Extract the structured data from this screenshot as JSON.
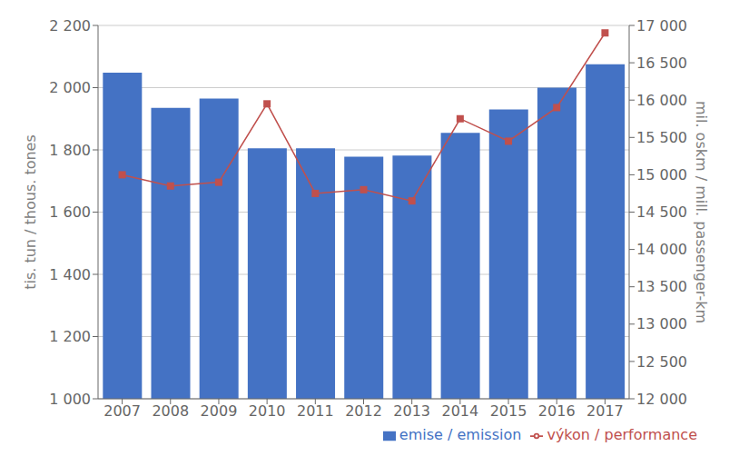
{
  "chart_data": {
    "type": "bar",
    "categories": [
      "2007",
      "2008",
      "2009",
      "2010",
      "2011",
      "2012",
      "2013",
      "2014",
      "2015",
      "2016",
      "2017"
    ],
    "series": [
      {
        "name": "emise / emission",
        "color": "#4472C4",
        "type": "bar",
        "values": [
          2048,
          1935,
          1965,
          1805,
          1805,
          1778,
          1782,
          1855,
          1930,
          2000,
          2075
        ]
      },
      {
        "name": "výkon / performance",
        "color": "#C0504D",
        "type": "line",
        "marker": "square",
        "axis": "y2",
        "values": [
          15000,
          14850,
          14900,
          15950,
          14750,
          14800,
          14650,
          15750,
          15450,
          15900,
          16900
        ]
      }
    ],
    "ylabel": "tis. tun / thous. tones",
    "y2label": "mil. oskm / mill. passenger-km",
    "ylim": [
      1000,
      2200
    ],
    "yticks": [
      {
        "value": 1000,
        "label": "1 000"
      },
      {
        "value": 1200,
        "label": "1 200"
      },
      {
        "value": 1400,
        "label": "1 400"
      },
      {
        "value": 1600,
        "label": "1 600"
      },
      {
        "value": 1800,
        "label": "1 800"
      },
      {
        "value": 2000,
        "label": "2 000"
      },
      {
        "value": 2200,
        "label": "2 200"
      }
    ],
    "y2lim": [
      12000,
      17000
    ],
    "y2ticks": [
      {
        "value": 12000,
        "label": "12 000"
      },
      {
        "value": 12500,
        "label": "12 500"
      },
      {
        "value": 13000,
        "label": "13 000"
      },
      {
        "value": 13500,
        "label": "13 500"
      },
      {
        "value": 14000,
        "label": "14 000"
      },
      {
        "value": 14500,
        "label": "14 500"
      },
      {
        "value": 15000,
        "label": "15 000"
      },
      {
        "value": 15500,
        "label": "15 500"
      },
      {
        "value": 16000,
        "label": "16 000"
      },
      {
        "value": 16500,
        "label": "16 500"
      },
      {
        "value": 17000,
        "label": "17 000"
      }
    ],
    "grid": true,
    "legend": "lower right"
  }
}
